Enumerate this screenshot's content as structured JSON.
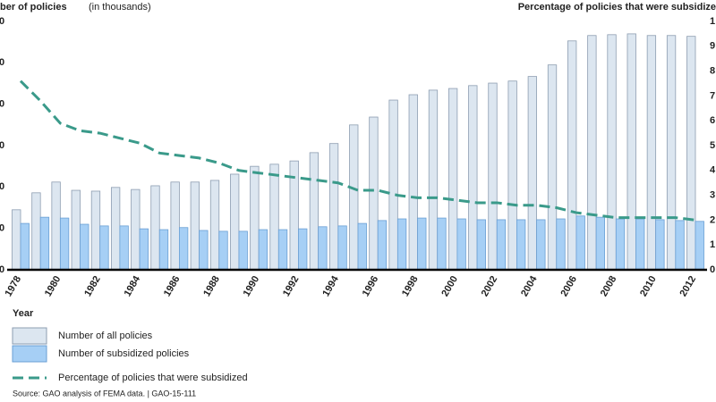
{
  "chart_data": {
    "type": "bar",
    "y_label": "ber of policies",
    "y_label_note": "(in thousands)",
    "y2_label": "Percentage of policies that were subsidize",
    "x_label": "Year",
    "source": "Source: GAO analysis of FEMA data.  |  GAO-15-111",
    "categories": [
      "1978",
      null,
      "1980",
      null,
      "1982",
      null,
      "1984",
      null,
      "1986",
      null,
      "1988",
      null,
      "1990",
      null,
      "1992",
      null,
      "1994",
      null,
      "1996",
      null,
      "1998",
      null,
      "2000",
      null,
      "2002",
      null,
      "2004",
      null,
      "2006",
      null,
      "2008",
      null,
      "2010",
      null,
      "2012"
    ],
    "series": [
      {
        "name": "Number of all policies",
        "type": "bar",
        "color": "#dce6f0",
        "values": [
          1450,
          1860,
          2120,
          1920,
          1900,
          1990,
          1940,
          2030,
          2120,
          2120,
          2160,
          2310,
          2500,
          2550,
          2630,
          2830,
          3050,
          3500,
          3690,
          4100,
          4230,
          4340,
          4380,
          4450,
          4510,
          4560,
          4670,
          4950,
          5530,
          5660,
          5680,
          5700,
          5660,
          5660,
          5640
        ]
      },
      {
        "name": "Number of subsidized policies",
        "type": "bar",
        "color": "#a6cff5",
        "values": [
          1120,
          1270,
          1250,
          1100,
          1060,
          1060,
          990,
          970,
          1020,
          950,
          930,
          930,
          970,
          970,
          990,
          1040,
          1060,
          1120,
          1190,
          1230,
          1250,
          1250,
          1230,
          1210,
          1210,
          1210,
          1210,
          1230,
          1300,
          1270,
          1230,
          1230,
          1210,
          1190,
          1170
        ]
      },
      {
        "name": "Percentage of policies that were subsidized",
        "type": "line",
        "color": "#3a9a8a",
        "axis": "y2",
        "values": [
          76,
          68,
          59,
          56,
          55,
          53,
          51,
          47,
          46,
          45,
          43,
          40,
          39,
          38,
          37,
          36,
          35,
          32,
          32,
          30,
          29,
          29,
          28,
          27,
          27,
          26,
          26,
          25,
          23,
          22,
          21,
          21,
          21,
          21,
          20
        ]
      }
    ],
    "ylim": [
      0,
      6000
    ],
    "yticks": [
      0,
      {
        "value": 1000,
        "label": "0"
      },
      {
        "value": 2000,
        "label": "0"
      },
      {
        "value": 3000,
        "label": "0"
      },
      {
        "value": 4000,
        "label": "0"
      },
      {
        "value": 5000,
        "label": "0"
      },
      {
        "value": 6000,
        "label": "0"
      }
    ],
    "y2lim": [
      0,
      100
    ],
    "y2ticks": [
      0,
      {
        "value": 10,
        "label": "1"
      },
      {
        "value": 20,
        "label": "2"
      },
      {
        "value": 30,
        "label": "3"
      },
      {
        "value": 40,
        "label": "4"
      },
      {
        "value": 50,
        "label": "5"
      },
      {
        "value": 60,
        "label": "6"
      },
      {
        "value": 70,
        "label": "7"
      },
      {
        "value": 80,
        "label": "8"
      },
      {
        "value": 90,
        "label": "9"
      },
      {
        "value": 100,
        "label": "1"
      }
    ],
    "grid": false
  }
}
